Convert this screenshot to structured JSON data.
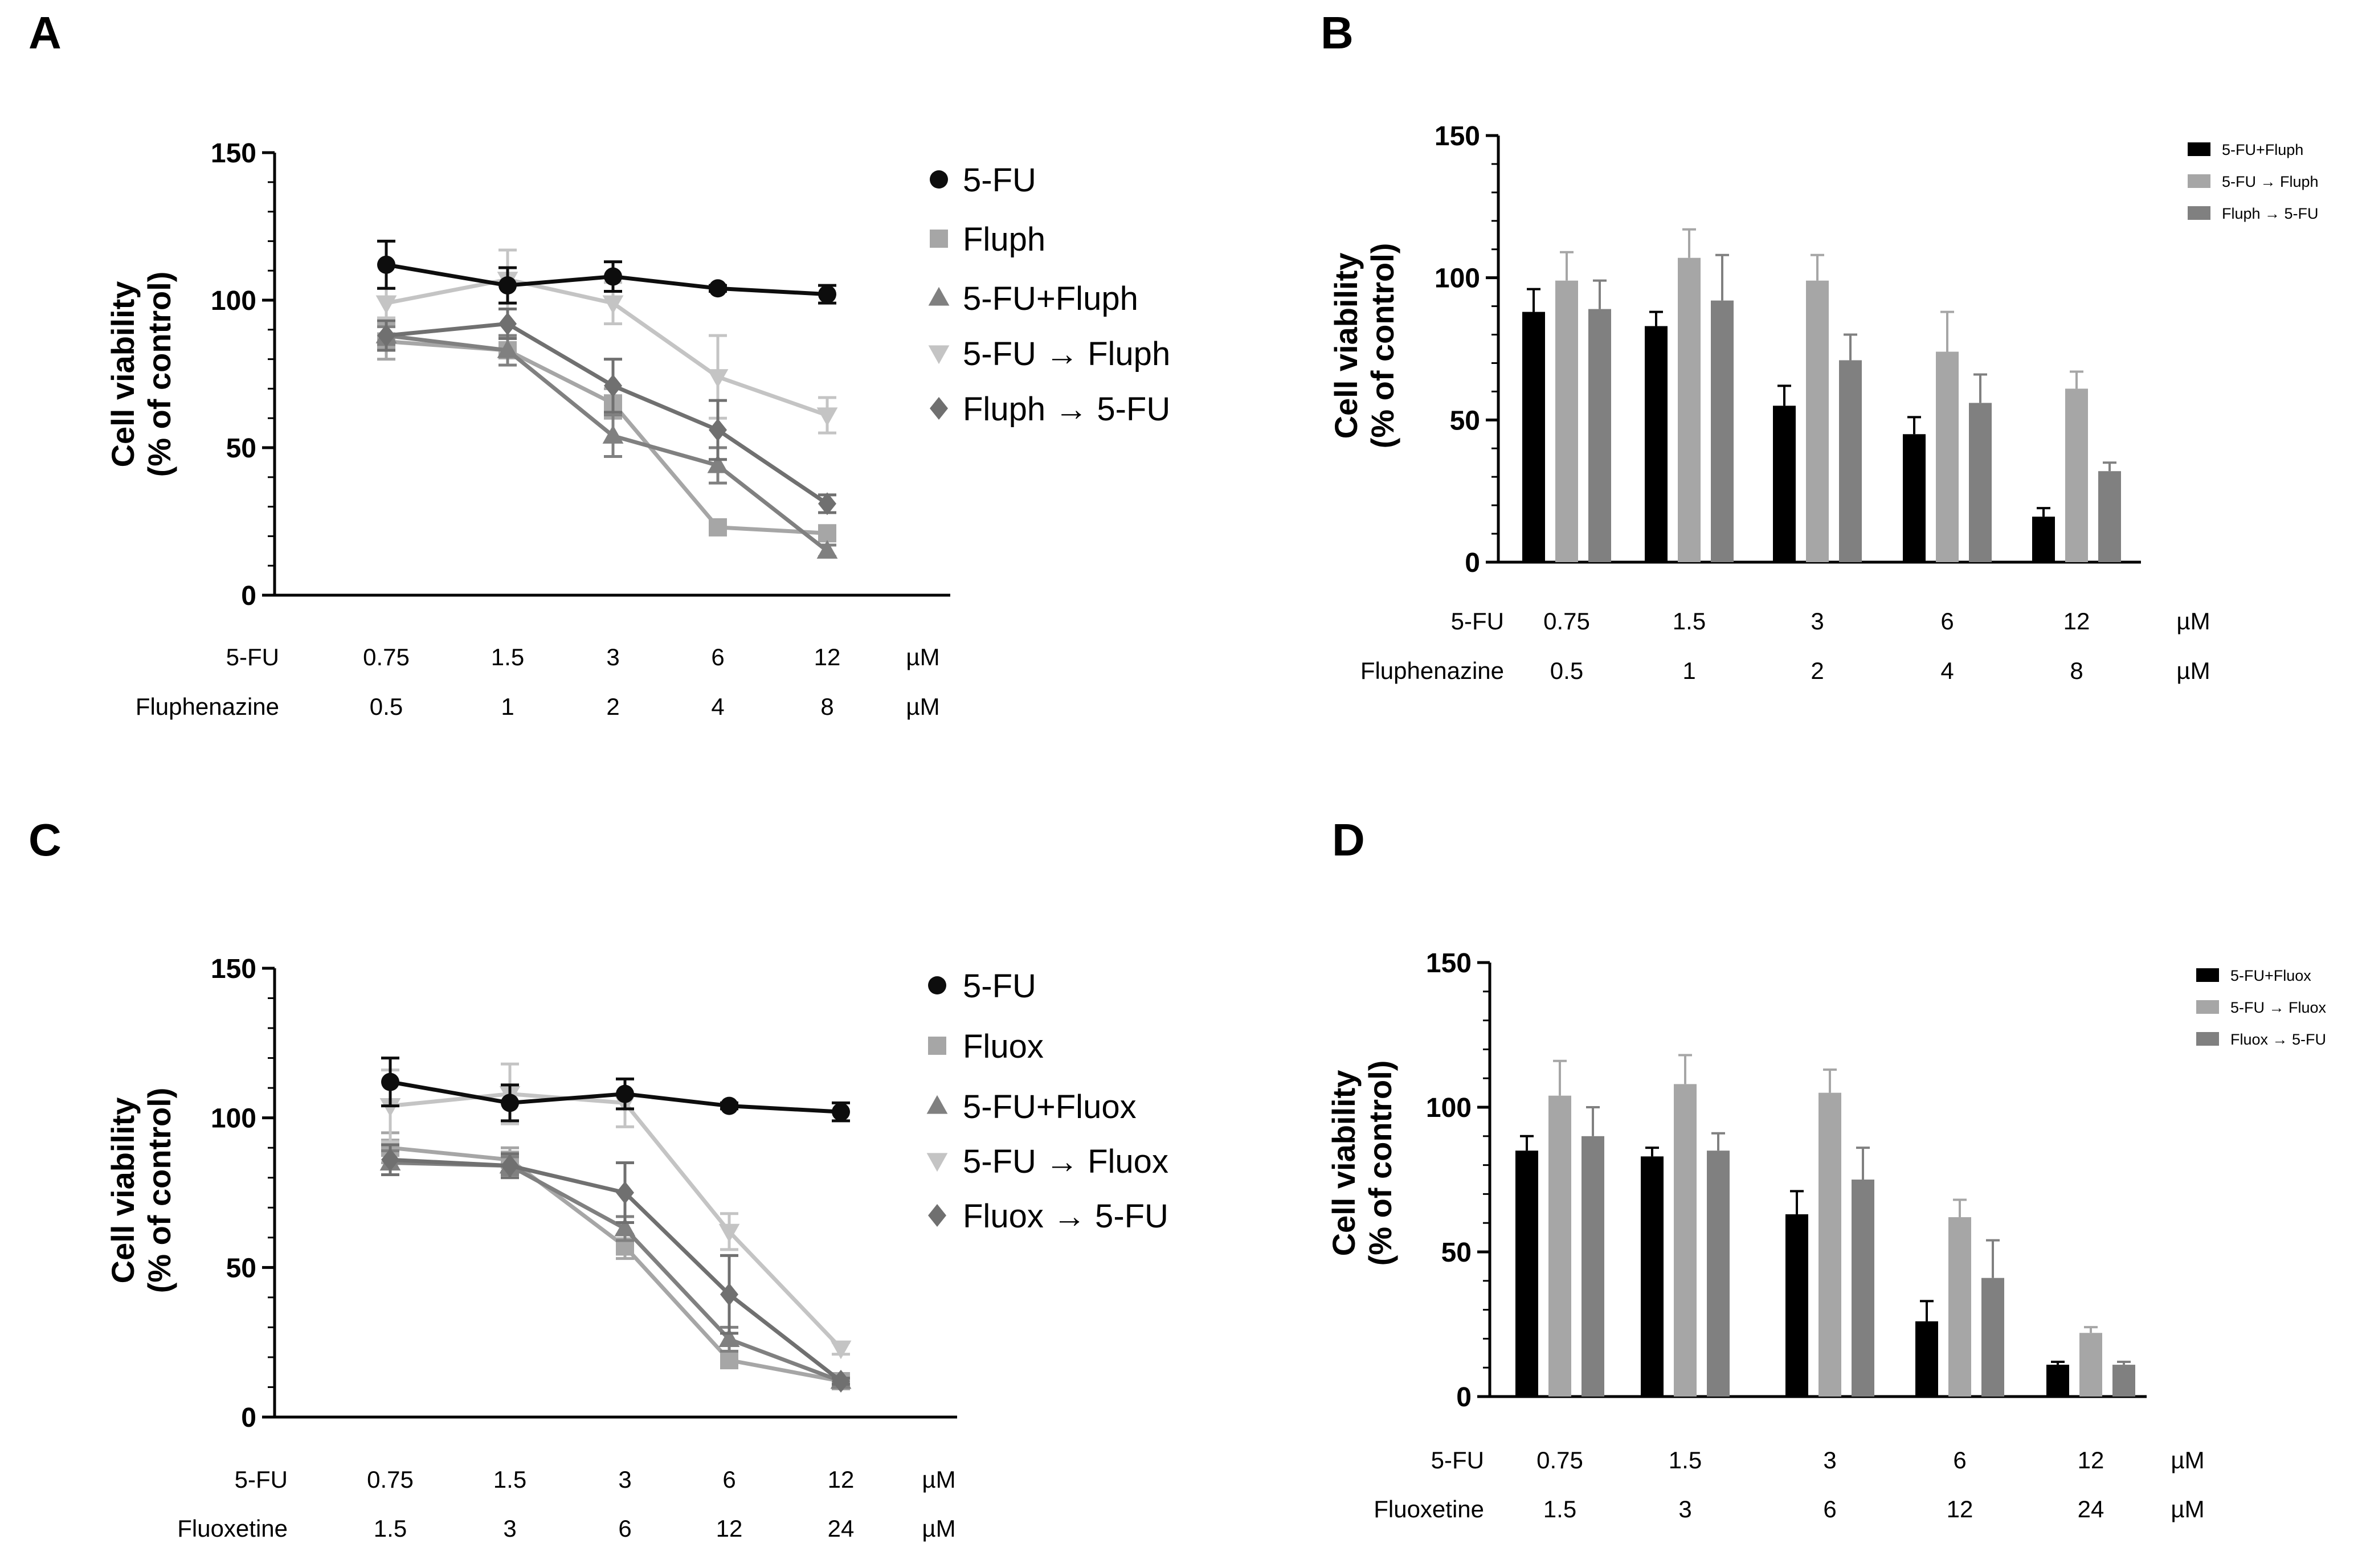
{
  "colors": {
    "s5fu": "#0d0d0d",
    "drug": "#a6a6a6",
    "combo": "#808080",
    "seqA": "#c4c4c4",
    "seqB": "#707070",
    "bar1": "#000000",
    "bar2": "#a6a6a6",
    "bar3": "#808080"
  },
  "chart_data": [
    {
      "panel": "A",
      "type": "line",
      "ylabel_line1": "Cell viability",
      "ylabel_line2": "(% of control)",
      "ylim": [
        0,
        150
      ],
      "yticks": [
        "0",
        "50",
        "100",
        "150"
      ],
      "row1_label": "5-FU",
      "row1_values": [
        "0.75",
        "1.5",
        "3",
        "6",
        "12"
      ],
      "row2_label": "Fluphenazine",
      "row2_values": [
        "0.5",
        "1",
        "2",
        "4",
        "8"
      ],
      "unit": "µM",
      "series": [
        {
          "name": "5-FU",
          "marker": "circle",
          "color": "#0d0d0d",
          "values": [
            112,
            105,
            108,
            104,
            102
          ],
          "errors": [
            8,
            6,
            5,
            1,
            3
          ]
        },
        {
          "name": "Fluph",
          "marker": "square",
          "color": "#a6a6a6",
          "values": [
            86,
            83,
            65,
            23,
            21
          ],
          "errors": [
            6,
            5,
            5,
            1,
            1
          ]
        },
        {
          "name": "5-FU+Fluph",
          "marker": "triangle",
          "color": "#808080",
          "values": [
            88,
            83,
            54,
            44,
            15
          ],
          "errors": [
            3,
            5,
            7,
            6,
            2
          ]
        },
        {
          "name": "5-FU → Fluph",
          "marker": "triangle-down",
          "color": "#c4c4c4",
          "values": [
            99,
            107,
            99,
            74,
            61
          ],
          "errors": [
            5,
            10,
            7,
            14,
            6
          ]
        },
        {
          "name": "Fluph → 5-FU",
          "marker": "diamond",
          "color": "#707070",
          "values": [
            88,
            92,
            71,
            56,
            31
          ],
          "errors": [
            5,
            5,
            9,
            10,
            3
          ]
        }
      ]
    },
    {
      "panel": "B",
      "type": "bar",
      "ylabel_line1": "Cell viability",
      "ylabel_line2": "(% of control)",
      "ylim": [
        0,
        150
      ],
      "yticks": [
        "0",
        "50",
        "100",
        "150"
      ],
      "row1_label": "5-FU",
      "row1_values": [
        "0.75",
        "1.5",
        "3",
        "6",
        "12"
      ],
      "row2_label": "Fluphenazine",
      "row2_values": [
        "0.5",
        "1",
        "2",
        "4",
        "8"
      ],
      "unit": "µM",
      "series": [
        {
          "name": "5-FU+Fluph",
          "color": "#000000",
          "values": [
            88,
            83,
            55,
            45,
            16
          ],
          "errors": [
            8,
            5,
            7,
            6,
            3
          ]
        },
        {
          "name": "5-FU → Fluph",
          "color": "#a6a6a6",
          "values": [
            99,
            107,
            99,
            74,
            61
          ],
          "errors": [
            10,
            10,
            9,
            14,
            6
          ]
        },
        {
          "name": "Fluph → 5-FU",
          "color": "#808080",
          "values": [
            89,
            92,
            71,
            56,
            32
          ],
          "errors": [
            10,
            16,
            9,
            10,
            3
          ]
        }
      ]
    },
    {
      "panel": "C",
      "type": "line",
      "ylabel_line1": "Cell viability",
      "ylabel_line2": "(% of control)",
      "ylim": [
        0,
        150
      ],
      "yticks": [
        "0",
        "50",
        "100",
        "150"
      ],
      "row1_label": "5-FU",
      "row1_values": [
        "0.75",
        "1.5",
        "3",
        "6",
        "12"
      ],
      "row2_label": "Fluoxetine",
      "row2_values": [
        "1.5",
        "3",
        "6",
        "12",
        "24"
      ],
      "unit": "µM",
      "series": [
        {
          "name": "5-FU",
          "marker": "circle",
          "color": "#0d0d0d",
          "values": [
            112,
            105,
            108,
            104,
            102
          ],
          "errors": [
            8,
            6,
            5,
            1,
            3
          ]
        },
        {
          "name": "Fluox",
          "marker": "square",
          "color": "#a6a6a6",
          "values": [
            90,
            86,
            57,
            19,
            12
          ],
          "errors": [
            5,
            4,
            4,
            2,
            1
          ]
        },
        {
          "name": "5-FU+Fluox",
          "marker": "triangle",
          "color": "#808080",
          "values": [
            85,
            84,
            63,
            26,
            12
          ],
          "errors": [
            4,
            3,
            4,
            4,
            1
          ]
        },
        {
          "name": "5-FU → Fluox",
          "marker": "triangle-down",
          "color": "#c4c4c4",
          "values": [
            104,
            108,
            105,
            62,
            23
          ],
          "errors": [
            12,
            10,
            8,
            6,
            2
          ]
        },
        {
          "name": "Fluox → 5-FU",
          "marker": "diamond",
          "color": "#707070",
          "values": [
            86,
            84,
            75,
            41,
            12
          ],
          "errors": [
            5,
            4,
            10,
            13,
            1
          ]
        }
      ]
    },
    {
      "panel": "D",
      "type": "bar",
      "ylabel_line1": "Cell viability",
      "ylabel_line2": "(% of control)",
      "ylim": [
        0,
        150
      ],
      "yticks": [
        "0",
        "50",
        "100",
        "150"
      ],
      "row1_label": "5-FU",
      "row1_values": [
        "0.75",
        "1.5",
        "3",
        "6",
        "12"
      ],
      "row2_label": "Fluoxetine",
      "row2_values": [
        "1.5",
        "3",
        "6",
        "12",
        "24"
      ],
      "unit": "µM",
      "series": [
        {
          "name": "5-FU+Fluox",
          "color": "#000000",
          "values": [
            85,
            83,
            63,
            26,
            11
          ],
          "errors": [
            5,
            3,
            8,
            7,
            1
          ]
        },
        {
          "name": "5-FU → Fluox",
          "color": "#a6a6a6",
          "values": [
            104,
            108,
            105,
            62,
            22
          ],
          "errors": [
            12,
            10,
            8,
            6,
            2
          ]
        },
        {
          "name": "Fluox → 5-FU",
          "color": "#808080",
          "values": [
            90,
            85,
            75,
            41,
            11
          ],
          "errors": [
            10,
            6,
            11,
            13,
            1
          ]
        }
      ]
    }
  ]
}
